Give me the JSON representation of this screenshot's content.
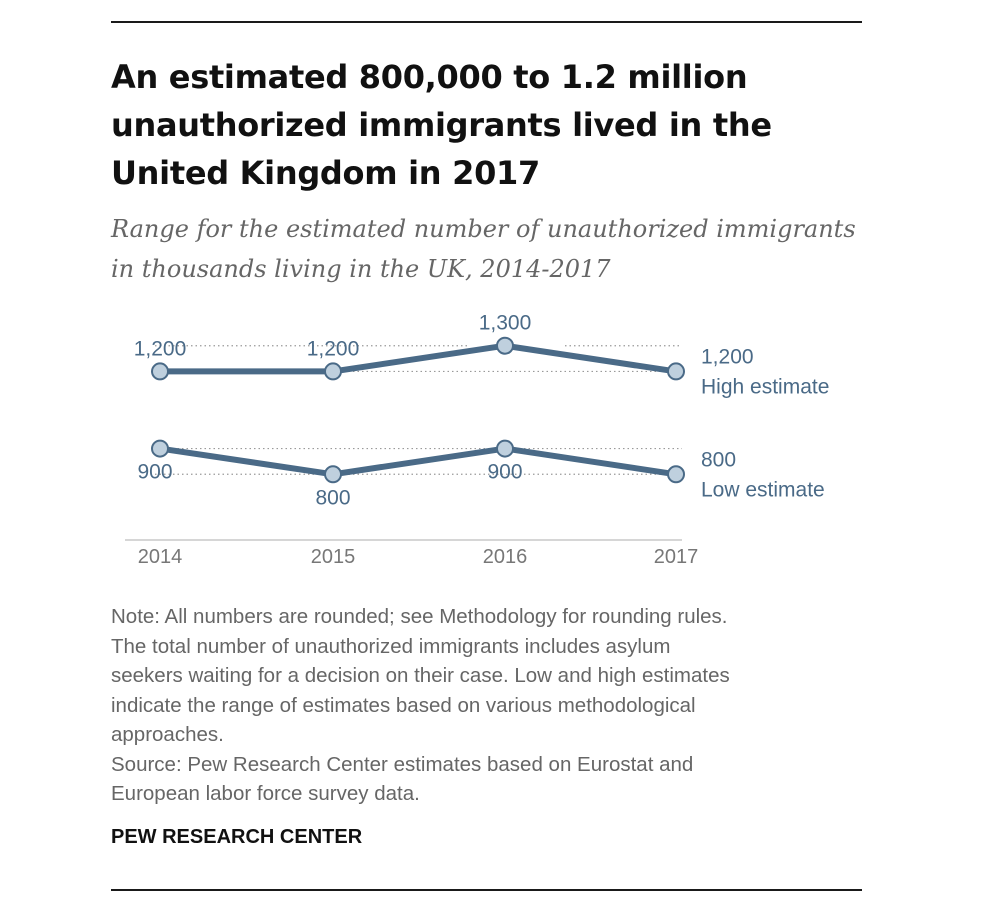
{
  "title": "An estimated 800,000 to 1.2 million unauthorized immigrants lived in the United Kingdom in 2017",
  "subtitle": "Range for the estimated number of unauthorized immigrants in thousands living in the UK, 2014-2017",
  "chart_data": {
    "type": "line",
    "x": [
      "2014",
      "2015",
      "2016",
      "2017"
    ],
    "series": [
      {
        "name": "High estimate",
        "values": [
          1200,
          1200,
          1300,
          1200
        ],
        "labels": [
          "1,200",
          "1,200",
          "1,300",
          "1,200"
        ]
      },
      {
        "name": "Low estimate",
        "values": [
          900,
          800,
          900,
          800
        ],
        "labels": [
          "900",
          "800",
          "900",
          "800"
        ]
      }
    ],
    "ylim": [
      700,
      1400
    ],
    "gridlines": [
      800,
      900,
      1200,
      1300
    ],
    "grid": true,
    "line_color": "#4a6a87",
    "marker_fill": "#bfd0de"
  },
  "note": [
    "Note: All numbers are rounded; see Methodology for rounding rules.",
    "The total number of unauthorized immigrants includes asylum",
    "seekers waiting for a decision on their case. Low and high estimates",
    "indicate the range of estimates based on various methodological",
    "approaches."
  ],
  "source": [
    "Source: Pew Research Center estimates based on Eurostat and",
    "European labor force survey data."
  ],
  "brand": "PEW RESEARCH CENTER"
}
